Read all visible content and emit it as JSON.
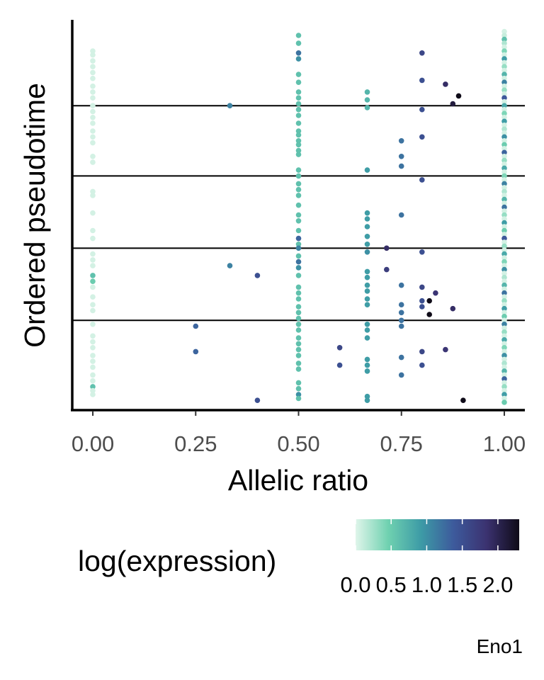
{
  "chart_data": {
    "type": "scatter",
    "title": "",
    "xlabel": "Allelic ratio",
    "ylabel": "Ordered pseudotime",
    "xlim": [
      -0.05,
      1.05
    ],
    "ylim": [
      0,
      100
    ],
    "x_ticks": [
      0,
      0.25,
      0.5,
      0.75,
      1
    ],
    "x_tick_labels": [
      "0.00",
      "0.25",
      "0.50",
      "0.75",
      "1.00"
    ],
    "y_tick_labels_shown": false,
    "grid": false,
    "horizontal_reference_lines_y": [
      78,
      60,
      41.5,
      23
    ],
    "color_scale": {
      "name": "log(expression)",
      "ticks": [
        0,
        0.5,
        1,
        1.5,
        2
      ],
      "tick_labels": [
        "0.0",
        "0.5",
        "1.0",
        "1.5",
        "2.0"
      ],
      "domain": [
        0,
        2.3
      ],
      "colors": [
        "#dff5ea",
        "#6fd1b0",
        "#3d9ba6",
        "#3d5a9c",
        "#3b3270",
        "#0f0b18"
      ],
      "legend_position": "bottom"
    },
    "caption": "Eno1",
    "points": [
      {
        "x": 0,
        "y": 92,
        "v": 0.05
      },
      {
        "x": 0,
        "y": 91,
        "v": 0.05
      },
      {
        "x": 0,
        "y": 89.5,
        "v": 0.05
      },
      {
        "x": 0,
        "y": 88,
        "v": 0.05
      },
      {
        "x": 0,
        "y": 86.5,
        "v": 0.05
      },
      {
        "x": 0,
        "y": 85,
        "v": 0.05
      },
      {
        "x": 0,
        "y": 83,
        "v": 0.05
      },
      {
        "x": 0,
        "y": 81.5,
        "v": 0.05
      },
      {
        "x": 0,
        "y": 80,
        "v": 0.05
      },
      {
        "x": 0,
        "y": 78,
        "v": 0.05
      },
      {
        "x": 0,
        "y": 76.5,
        "v": 0.05
      },
      {
        "x": 0,
        "y": 75,
        "v": 0.05
      },
      {
        "x": 0,
        "y": 73.5,
        "v": 0.05
      },
      {
        "x": 0,
        "y": 71.5,
        "v": 0.05
      },
      {
        "x": 0,
        "y": 70,
        "v": 0.05
      },
      {
        "x": 0,
        "y": 68.5,
        "v": 0.05
      },
      {
        "x": 0,
        "y": 65,
        "v": 0.05
      },
      {
        "x": 0,
        "y": 63.5,
        "v": 0.05
      },
      {
        "x": 0,
        "y": 56,
        "v": 0.05
      },
      {
        "x": 0,
        "y": 55,
        "v": 0.05
      },
      {
        "x": 0,
        "y": 50.5,
        "v": 0.05
      },
      {
        "x": 0,
        "y": 46,
        "v": 0.05
      },
      {
        "x": 0,
        "y": 44,
        "v": 0.05
      },
      {
        "x": 0,
        "y": 40,
        "v": 0.05
      },
      {
        "x": 0,
        "y": 38.5,
        "v": 0.05
      },
      {
        "x": 0,
        "y": 37,
        "v": 0.05
      },
      {
        "x": 0,
        "y": 34.5,
        "v": 0.6
      },
      {
        "x": 0,
        "y": 33,
        "v": 0.5
      },
      {
        "x": 0,
        "y": 31.5,
        "v": 0.05
      },
      {
        "x": 0,
        "y": 29,
        "v": 0.05
      },
      {
        "x": 0,
        "y": 27,
        "v": 0.05
      },
      {
        "x": 0,
        "y": 25.5,
        "v": 0.05
      },
      {
        "x": 0,
        "y": 22,
        "v": 0.05
      },
      {
        "x": 0,
        "y": 19,
        "v": 0.05
      },
      {
        "x": 0,
        "y": 17.5,
        "v": 0.05
      },
      {
        "x": 0,
        "y": 16,
        "v": 0.05
      },
      {
        "x": 0,
        "y": 14,
        "v": 0.05
      },
      {
        "x": 0,
        "y": 12.5,
        "v": 0.05
      },
      {
        "x": 0,
        "y": 11,
        "v": 0.05
      },
      {
        "x": 0,
        "y": 9,
        "v": 0.05
      },
      {
        "x": 0,
        "y": 7.5,
        "v": 0.05
      },
      {
        "x": 0,
        "y": 6,
        "v": 0.6
      },
      {
        "x": 0,
        "y": 5,
        "v": 0.05
      },
      {
        "x": 0,
        "y": 4,
        "v": 0.05
      },
      {
        "x": 0.25,
        "y": 21.5,
        "v": 1.3
      },
      {
        "x": 0.25,
        "y": 15,
        "v": 1.3
      },
      {
        "x": 0.333,
        "y": 78,
        "v": 1.1
      },
      {
        "x": 0.333,
        "y": 37,
        "v": 1.1
      },
      {
        "x": 0.4,
        "y": 34.5,
        "v": 1.5
      },
      {
        "x": 0.4,
        "y": 2.5,
        "v": 1.5
      },
      {
        "x": 0.5,
        "y": 96,
        "v": 0.6
      },
      {
        "x": 0.5,
        "y": 94,
        "v": 0.6
      },
      {
        "x": 0.5,
        "y": 91.5,
        "v": 1.2
      },
      {
        "x": 0.5,
        "y": 90,
        "v": 1.0
      },
      {
        "x": 0.5,
        "y": 86,
        "v": 0.6
      },
      {
        "x": 0.5,
        "y": 84,
        "v": 0.6
      },
      {
        "x": 0.5,
        "y": 81.5,
        "v": 0.6
      },
      {
        "x": 0.5,
        "y": 80,
        "v": 0.6
      },
      {
        "x": 0.5,
        "y": 78.5,
        "v": 0.6
      },
      {
        "x": 0.5,
        "y": 77,
        "v": 0.6
      },
      {
        "x": 0.5,
        "y": 75.5,
        "v": 0.6
      },
      {
        "x": 0.5,
        "y": 73.5,
        "v": 0.6
      },
      {
        "x": 0.5,
        "y": 71.5,
        "v": 0.6
      },
      {
        "x": 0.5,
        "y": 70.5,
        "v": 0.6
      },
      {
        "x": 0.5,
        "y": 69,
        "v": 0.6
      },
      {
        "x": 0.5,
        "y": 68,
        "v": 0.6
      },
      {
        "x": 0.5,
        "y": 66.5,
        "v": 0.6
      },
      {
        "x": 0.5,
        "y": 65.5,
        "v": 0.6
      },
      {
        "x": 0.5,
        "y": 61.5,
        "v": 0.6
      },
      {
        "x": 0.5,
        "y": 60,
        "v": 0.6
      },
      {
        "x": 0.5,
        "y": 58,
        "v": 0.6
      },
      {
        "x": 0.5,
        "y": 56.5,
        "v": 0.6
      },
      {
        "x": 0.5,
        "y": 55,
        "v": 0.6
      },
      {
        "x": 0.5,
        "y": 52.5,
        "v": 0.6
      },
      {
        "x": 0.5,
        "y": 50,
        "v": 0.6
      },
      {
        "x": 0.5,
        "y": 48.5,
        "v": 0.6
      },
      {
        "x": 0.5,
        "y": 46,
        "v": 0.6
      },
      {
        "x": 0.5,
        "y": 44,
        "v": 1.3
      },
      {
        "x": 0.5,
        "y": 42.5,
        "v": 0.6
      },
      {
        "x": 0.5,
        "y": 41.5,
        "v": 1.1
      },
      {
        "x": 0.5,
        "y": 39.5,
        "v": 0.6
      },
      {
        "x": 0.5,
        "y": 38,
        "v": 1.2
      },
      {
        "x": 0.5,
        "y": 36.5,
        "v": 1.0
      },
      {
        "x": 0.5,
        "y": 34.5,
        "v": 0.6
      },
      {
        "x": 0.5,
        "y": 31.5,
        "v": 0.6
      },
      {
        "x": 0.5,
        "y": 30,
        "v": 0.6
      },
      {
        "x": 0.5,
        "y": 28.5,
        "v": 0.6
      },
      {
        "x": 0.5,
        "y": 26.5,
        "v": 0.6
      },
      {
        "x": 0.5,
        "y": 25,
        "v": 0.6
      },
      {
        "x": 0.5,
        "y": 23.5,
        "v": 0.6
      },
      {
        "x": 0.5,
        "y": 22,
        "v": 0.6
      },
      {
        "x": 0.5,
        "y": 20.5,
        "v": 0.6
      },
      {
        "x": 0.5,
        "y": 18.5,
        "v": 0.6
      },
      {
        "x": 0.5,
        "y": 17,
        "v": 0.6
      },
      {
        "x": 0.5,
        "y": 15.5,
        "v": 0.6
      },
      {
        "x": 0.5,
        "y": 14,
        "v": 0.6
      },
      {
        "x": 0.5,
        "y": 12,
        "v": 0.6
      },
      {
        "x": 0.5,
        "y": 10.5,
        "v": 0.6
      },
      {
        "x": 0.5,
        "y": 7,
        "v": 0.6
      },
      {
        "x": 0.5,
        "y": 5.5,
        "v": 0.6
      },
      {
        "x": 0.5,
        "y": 4,
        "v": 1.0
      },
      {
        "x": 0.5,
        "y": 3,
        "v": 0.6
      },
      {
        "x": 0.6,
        "y": 16,
        "v": 1.6
      },
      {
        "x": 0.6,
        "y": 11.5,
        "v": 1.5
      },
      {
        "x": 0.667,
        "y": 81.5,
        "v": 0.7
      },
      {
        "x": 0.667,
        "y": 79.5,
        "v": 0.7
      },
      {
        "x": 0.667,
        "y": 77.5,
        "v": 0.7
      },
      {
        "x": 0.667,
        "y": 61.5,
        "v": 0.9
      },
      {
        "x": 0.667,
        "y": 50.5,
        "v": 0.9
      },
      {
        "x": 0.667,
        "y": 49,
        "v": 0.9
      },
      {
        "x": 0.667,
        "y": 47,
        "v": 0.9
      },
      {
        "x": 0.667,
        "y": 44.5,
        "v": 0.9
      },
      {
        "x": 0.667,
        "y": 42.5,
        "v": 0.9
      },
      {
        "x": 0.667,
        "y": 40.5,
        "v": 1.0
      },
      {
        "x": 0.667,
        "y": 35.5,
        "v": 0.9
      },
      {
        "x": 0.667,
        "y": 34,
        "v": 0.9
      },
      {
        "x": 0.667,
        "y": 32,
        "v": 0.9
      },
      {
        "x": 0.667,
        "y": 30.5,
        "v": 0.9
      },
      {
        "x": 0.667,
        "y": 28.5,
        "v": 0.9
      },
      {
        "x": 0.667,
        "y": 27,
        "v": 0.9
      },
      {
        "x": 0.667,
        "y": 22,
        "v": 0.9
      },
      {
        "x": 0.667,
        "y": 20.5,
        "v": 0.9
      },
      {
        "x": 0.667,
        "y": 18.5,
        "v": 0.9
      },
      {
        "x": 0.667,
        "y": 13,
        "v": 0.9
      },
      {
        "x": 0.667,
        "y": 11.5,
        "v": 0.9
      },
      {
        "x": 0.667,
        "y": 10,
        "v": 0.9
      },
      {
        "x": 0.667,
        "y": 3.5,
        "v": 0.9
      },
      {
        "x": 0.667,
        "y": 2.5,
        "v": 0.9
      },
      {
        "x": 0.714,
        "y": 41.5,
        "v": 1.9
      },
      {
        "x": 0.714,
        "y": 36,
        "v": 1.7
      },
      {
        "x": 0.75,
        "y": 69,
        "v": 1.2
      },
      {
        "x": 0.75,
        "y": 65,
        "v": 1.2
      },
      {
        "x": 0.75,
        "y": 62.5,
        "v": 1.2
      },
      {
        "x": 0.75,
        "y": 50,
        "v": 1.2
      },
      {
        "x": 0.75,
        "y": 32,
        "v": 1.2
      },
      {
        "x": 0.75,
        "y": 27,
        "v": 1.2
      },
      {
        "x": 0.75,
        "y": 25,
        "v": 1.2
      },
      {
        "x": 0.75,
        "y": 23,
        "v": 1.2
      },
      {
        "x": 0.75,
        "y": 21.5,
        "v": 1.2
      },
      {
        "x": 0.75,
        "y": 13.5,
        "v": 1.2
      },
      {
        "x": 0.75,
        "y": 9,
        "v": 1.2
      },
      {
        "x": 0.8,
        "y": 91.5,
        "v": 1.6
      },
      {
        "x": 0.8,
        "y": 84.5,
        "v": 1.5
      },
      {
        "x": 0.8,
        "y": 77,
        "v": 1.5
      },
      {
        "x": 0.8,
        "y": 70,
        "v": 1.5
      },
      {
        "x": 0.8,
        "y": 59,
        "v": 1.5
      },
      {
        "x": 0.8,
        "y": 40.5,
        "v": 1.5
      },
      {
        "x": 0.8,
        "y": 31.5,
        "v": 1.6
      },
      {
        "x": 0.8,
        "y": 28,
        "v": 1.5
      },
      {
        "x": 0.8,
        "y": 26.5,
        "v": 1.5
      },
      {
        "x": 0.8,
        "y": 15,
        "v": 1.6
      },
      {
        "x": 0.8,
        "y": 11.5,
        "v": 1.5
      },
      {
        "x": 0.818,
        "y": 28,
        "v": 2.3
      },
      {
        "x": 0.818,
        "y": 24.5,
        "v": 2.3
      },
      {
        "x": 0.833,
        "y": 30,
        "v": 1.8
      },
      {
        "x": 0.857,
        "y": 83.5,
        "v": 1.9
      },
      {
        "x": 0.857,
        "y": 15.5,
        "v": 1.8
      },
      {
        "x": 0.875,
        "y": 78.5,
        "v": 2.1
      },
      {
        "x": 0.875,
        "y": 26,
        "v": 1.9
      },
      {
        "x": 0.889,
        "y": 80.5,
        "v": 2.3
      },
      {
        "x": 0.9,
        "y": 2.5,
        "v": 2.3
      },
      {
        "x": 1,
        "y": 97,
        "v": 0.05
      },
      {
        "x": 1,
        "y": 96,
        "v": 0.1
      },
      {
        "x": 1,
        "y": 95,
        "v": 0.6
      },
      {
        "x": 1,
        "y": 94,
        "v": 0.2
      },
      {
        "x": 1,
        "y": 93,
        "v": 0.05
      },
      {
        "x": 1,
        "y": 92,
        "v": 0.4
      },
      {
        "x": 1,
        "y": 91,
        "v": 0.05
      },
      {
        "x": 1,
        "y": 90,
        "v": 0.9
      },
      {
        "x": 1,
        "y": 89,
        "v": 0.05
      },
      {
        "x": 1,
        "y": 88,
        "v": 0.3
      },
      {
        "x": 1,
        "y": 87,
        "v": 0.05
      },
      {
        "x": 1,
        "y": 86,
        "v": 0.7
      },
      {
        "x": 1,
        "y": 85,
        "v": 0.05
      },
      {
        "x": 1,
        "y": 84,
        "v": 1.1
      },
      {
        "x": 1,
        "y": 83,
        "v": 0.05
      },
      {
        "x": 1,
        "y": 82,
        "v": 0.3
      },
      {
        "x": 1,
        "y": 81,
        "v": 0.05
      },
      {
        "x": 1,
        "y": 80,
        "v": 1.4
      },
      {
        "x": 1,
        "y": 79,
        "v": 0.05
      },
      {
        "x": 1,
        "y": 78,
        "v": 0.8
      },
      {
        "x": 1,
        "y": 77,
        "v": 0.05
      },
      {
        "x": 1,
        "y": 76,
        "v": 0.4
      },
      {
        "x": 1,
        "y": 75,
        "v": 0.05
      },
      {
        "x": 1,
        "y": 74,
        "v": 0.9
      },
      {
        "x": 1,
        "y": 73,
        "v": 0.05
      },
      {
        "x": 1,
        "y": 72,
        "v": 0.2
      },
      {
        "x": 1,
        "y": 71,
        "v": 0.05
      },
      {
        "x": 1,
        "y": 70,
        "v": 1.0
      },
      {
        "x": 1,
        "y": 69,
        "v": 0.05
      },
      {
        "x": 1,
        "y": 68,
        "v": 0.5
      },
      {
        "x": 1,
        "y": 67,
        "v": 0.05
      },
      {
        "x": 1,
        "y": 66,
        "v": 1.3
      },
      {
        "x": 1,
        "y": 65,
        "v": 0.05
      },
      {
        "x": 1,
        "y": 64,
        "v": 0.3
      },
      {
        "x": 1,
        "y": 63,
        "v": 0.05
      },
      {
        "x": 1,
        "y": 62,
        "v": 0.8
      },
      {
        "x": 1,
        "y": 61,
        "v": 0.05
      },
      {
        "x": 1,
        "y": 60,
        "v": 0.4
      },
      {
        "x": 1,
        "y": 59,
        "v": 0.05
      },
      {
        "x": 1,
        "y": 58,
        "v": 1.1
      },
      {
        "x": 1,
        "y": 57,
        "v": 0.05
      },
      {
        "x": 1,
        "y": 56,
        "v": 0.2
      },
      {
        "x": 1,
        "y": 55,
        "v": 0.05
      },
      {
        "x": 1,
        "y": 54,
        "v": 0.7
      },
      {
        "x": 1,
        "y": 53,
        "v": 0.05
      },
      {
        "x": 1,
        "y": 52,
        "v": 1.2
      },
      {
        "x": 1,
        "y": 51,
        "v": 0.05
      },
      {
        "x": 1,
        "y": 50,
        "v": 0.3
      },
      {
        "x": 1,
        "y": 49,
        "v": 0.05
      },
      {
        "x": 1,
        "y": 48,
        "v": 0.9
      },
      {
        "x": 1,
        "y": 47,
        "v": 0.05
      },
      {
        "x": 1,
        "y": 46,
        "v": 0.5
      },
      {
        "x": 1,
        "y": 45,
        "v": 0.05
      },
      {
        "x": 1,
        "y": 44,
        "v": 1.4
      },
      {
        "x": 1,
        "y": 43,
        "v": 0.05
      },
      {
        "x": 1,
        "y": 42,
        "v": 0.3
      },
      {
        "x": 1,
        "y": 41,
        "v": 0.05
      },
      {
        "x": 1,
        "y": 40,
        "v": 0.8
      },
      {
        "x": 1,
        "y": 39,
        "v": 0.05
      },
      {
        "x": 1,
        "y": 38,
        "v": 0.4
      },
      {
        "x": 1,
        "y": 37,
        "v": 0.05
      },
      {
        "x": 1,
        "y": 36,
        "v": 1.0
      },
      {
        "x": 1,
        "y": 35,
        "v": 0.05
      },
      {
        "x": 1,
        "y": 34,
        "v": 0.2
      },
      {
        "x": 1,
        "y": 33,
        "v": 0.05
      },
      {
        "x": 1,
        "y": 32,
        "v": 0.7
      },
      {
        "x": 1,
        "y": 31,
        "v": 0.05
      },
      {
        "x": 1,
        "y": 30,
        "v": 1.2
      },
      {
        "x": 1,
        "y": 29,
        "v": 0.05
      },
      {
        "x": 1,
        "y": 28,
        "v": 0.3
      },
      {
        "x": 1,
        "y": 27,
        "v": 0.05
      },
      {
        "x": 1,
        "y": 26,
        "v": 0.9
      },
      {
        "x": 1,
        "y": 25,
        "v": 0.05
      },
      {
        "x": 1,
        "y": 24,
        "v": 0.5
      },
      {
        "x": 1,
        "y": 23,
        "v": 0.05
      },
      {
        "x": 1,
        "y": 22,
        "v": 1.1
      },
      {
        "x": 1,
        "y": 21,
        "v": 0.05
      },
      {
        "x": 1,
        "y": 20,
        "v": 0.3
      },
      {
        "x": 1,
        "y": 19,
        "v": 0.05
      },
      {
        "x": 1,
        "y": 18,
        "v": 0.8
      },
      {
        "x": 1,
        "y": 17,
        "v": 0.05
      },
      {
        "x": 1,
        "y": 16,
        "v": 0.4
      },
      {
        "x": 1,
        "y": 15,
        "v": 0.05
      },
      {
        "x": 1,
        "y": 14,
        "v": 1.0
      },
      {
        "x": 1,
        "y": 13,
        "v": 0.05
      },
      {
        "x": 1,
        "y": 12,
        "v": 0.2
      },
      {
        "x": 1,
        "y": 11,
        "v": 0.05
      },
      {
        "x": 1,
        "y": 10,
        "v": 0.7
      },
      {
        "x": 1,
        "y": 9,
        "v": 0.05
      },
      {
        "x": 1,
        "y": 8,
        "v": 1.3
      },
      {
        "x": 1,
        "y": 7,
        "v": 0.05
      },
      {
        "x": 1,
        "y": 6,
        "v": 0.3
      },
      {
        "x": 1,
        "y": 5,
        "v": 0.05
      },
      {
        "x": 1,
        "y": 4,
        "v": 0.9
      },
      {
        "x": 1,
        "y": 3,
        "v": 0.05
      },
      {
        "x": 1,
        "y": 2,
        "v": 0.5
      }
    ]
  }
}
